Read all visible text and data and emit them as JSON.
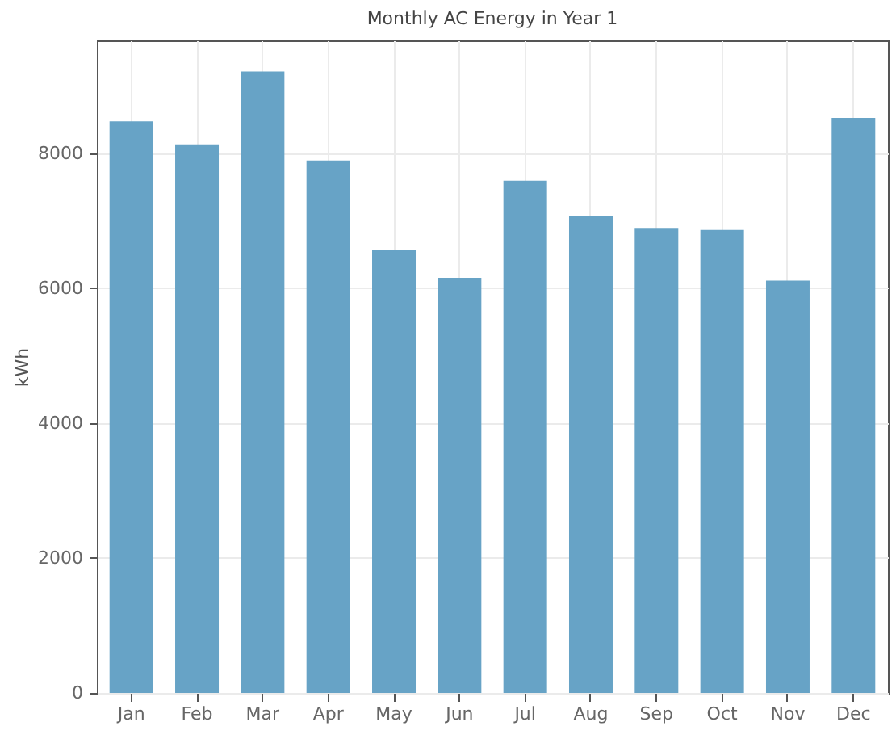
{
  "chart_data": {
    "type": "bar",
    "title": "Monthly AC Energy in Year 1",
    "ylabel": "kWh",
    "categories": [
      "Jan",
      "Feb",
      "Mar",
      "Apr",
      "May",
      "Jun",
      "Jul",
      "Aug",
      "Sep",
      "Oct",
      "Nov",
      "Dec"
    ],
    "values": [
      8470,
      8130,
      9210,
      7890,
      6560,
      6150,
      7590,
      7070,
      6890,
      6860,
      6110,
      8520
    ],
    "color": "#67a3c6",
    "ylim": [
      0,
      9670
    ],
    "yticks": [
      0,
      2000,
      4000,
      6000,
      8000
    ],
    "grid": true
  }
}
